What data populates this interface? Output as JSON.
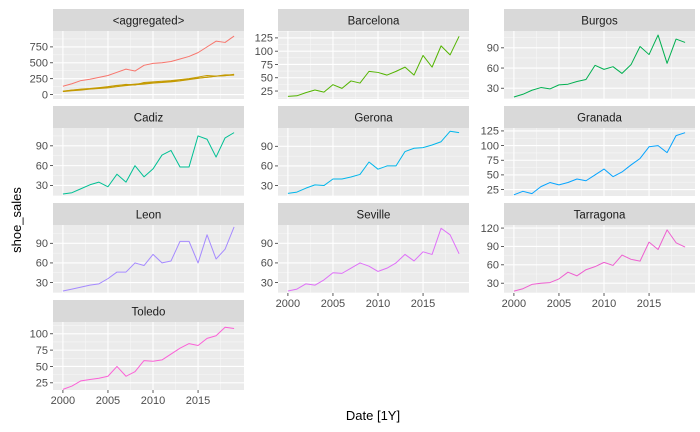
{
  "chart_data": {
    "type": "line",
    "xlabel": "Date [1Y]",
    "ylabel": "shoe_sales",
    "x_ticks": [
      2000,
      2005,
      2010,
      2015
    ],
    "xlim": [
      1998.9,
      2020.1
    ],
    "years": [
      2000,
      2001,
      2002,
      2003,
      2004,
      2005,
      2006,
      2007,
      2008,
      2009,
      2010,
      2011,
      2012,
      2013,
      2014,
      2015,
      2016,
      2017,
      2018,
      2019
    ],
    "colors": {
      "aggregated_total": "#F8766D",
      "aggregated_components": "#C49A00",
      "Barcelona": "#53B400",
      "Burgos": "#00B050",
      "Cadiz": "#00C094",
      "Gerona": "#00B6EB",
      "Granada": "#06A4FF",
      "Leon": "#A58AFF",
      "Seville": "#DF70F8",
      "Tarragona": "#EE5FD0",
      "Toledo": "#FB61D7"
    },
    "panels": [
      {
        "title": "<aggregated>",
        "ylim": [
          -70,
          1000
        ],
        "yticks": [
          0,
          250,
          500,
          750
        ],
        "series": [
          {
            "color_key": "aggregated_total",
            "values": [
              130,
              170,
              220,
              240,
              270,
              300,
              350,
              400,
              370,
              460,
              490,
              500,
              520,
              560,
              600,
              660,
              750,
              840,
              820,
              920
            ]
          },
          {
            "color_key": "aggregated_components",
            "values": [
              50,
              70,
              80,
              90,
              100,
              120,
              140,
              160,
              150,
              190,
              200,
              210,
              220,
              235,
              250,
              275,
              300,
              290,
              310,
              310
            ]
          },
          {
            "color_key": "aggregated_components",
            "values": [
              55,
              70,
              85,
              95,
              110,
              125,
              145,
              150,
              165,
              175,
              185,
              195,
              210,
              220,
              240,
              260,
              270,
              290,
              295,
              320
            ]
          },
          {
            "color_key": "aggregated_components",
            "values": [
              45,
              60,
              70,
              85,
              95,
              105,
              125,
              140,
              155,
              165,
              180,
              190,
              200,
              215,
              235,
              255,
              275,
              290,
              300,
              305
            ]
          }
        ]
      },
      {
        "title": "Barcelona",
        "ylim": [
          10,
          138
        ],
        "yticks": [
          25,
          50,
          75,
          100,
          125
        ],
        "series": [
          {
            "color_key": "Barcelona",
            "values": [
              15,
              16,
              22,
              27,
              23,
              37,
              30,
              44,
              40,
              62,
              60,
              55,
              62,
              70,
              55,
              92,
              70,
              110,
              93,
              128
            ]
          }
        ]
      },
      {
        "title": "Burgos",
        "ylim": [
          14,
          115
        ],
        "yticks": [
          30,
          60,
          90
        ],
        "series": [
          {
            "color_key": "Burgos",
            "values": [
              17,
              21,
              27,
              31,
              29,
              35,
              36,
              40,
              43,
              64,
              58,
              62,
              52,
              65,
              92,
              80,
              109,
              67,
              103,
              98
            ]
          }
        ]
      },
      {
        "title": "Cadiz",
        "ylim": [
          14,
          117
        ],
        "yticks": [
          30,
          60,
          90
        ],
        "series": [
          {
            "color_key": "Cadiz",
            "values": [
              17,
              19,
              25,
              31,
              35,
              28,
              47,
              35,
              60,
              43,
              55,
              76,
              83,
              58,
              58,
              105,
              100,
              73,
              102,
              110
            ]
          }
        ]
      },
      {
        "title": "Gerona",
        "ylim": [
          14,
          118
        ],
        "yticks": [
          30,
          60,
          90
        ],
        "series": [
          {
            "color_key": "Gerona",
            "values": [
              18,
              20,
              26,
              31,
              30,
              40,
              40,
              43,
              47,
              66,
              55,
              60,
              60,
              82,
              87,
              88,
              92,
              97,
              113,
              111
            ]
          }
        ]
      },
      {
        "title": "Granada",
        "ylim": [
          14,
          130
        ],
        "yticks": [
          25,
          50,
          75,
          100,
          125
        ],
        "series": [
          {
            "color_key": "Granada",
            "values": [
              16,
              22,
              18,
              30,
              37,
              33,
              37,
              43,
              40,
              50,
              60,
              47,
              55,
              67,
              78,
              98,
              100,
              88,
              117,
              122
            ]
          }
        ]
      },
      {
        "title": "Leon",
        "ylim": [
          14,
          118
        ],
        "yticks": [
          30,
          60,
          90
        ],
        "series": [
          {
            "color_key": "Leon",
            "values": [
              17,
              20,
              23,
              26,
              28,
              36,
              46,
              46,
              60,
              56,
              73,
              60,
              63,
              93,
              93,
              60,
              103,
              66,
              81,
              115
            ]
          }
        ]
      },
      {
        "title": "Seville",
        "ylim": [
          14,
          118
        ],
        "yticks": [
          30,
          60,
          90
        ],
        "series": [
          {
            "color_key": "Seville",
            "values": [
              17,
              20,
              28,
              26,
              34,
              45,
              44,
              52,
              60,
              55,
              47,
              52,
              60,
              73,
              63,
              77,
              73,
              113,
              103,
              74
            ]
          }
        ]
      },
      {
        "title": "Tarragona",
        "ylim": [
          14,
          125
        ],
        "yticks": [
          30,
          60,
          90,
          120
        ],
        "series": [
          {
            "color_key": "Tarragona",
            "values": [
              17,
              21,
              28,
              30,
              31,
              37,
              48,
              42,
              52,
              57,
              64,
              59,
              76,
              69,
              66,
              97,
              85,
              117,
              96,
              89
            ]
          }
        ]
      },
      {
        "title": "Toledo",
        "ylim": [
          14,
          118
        ],
        "yticks": [
          25,
          50,
          75,
          100
        ],
        "series": [
          {
            "color_key": "Toledo",
            "values": [
              15,
              20,
              28,
              30,
              32,
              35,
              50,
              35,
              42,
              59,
              58,
              60,
              69,
              78,
              85,
              82,
              93,
              97,
              110,
              108
            ]
          }
        ]
      }
    ]
  }
}
